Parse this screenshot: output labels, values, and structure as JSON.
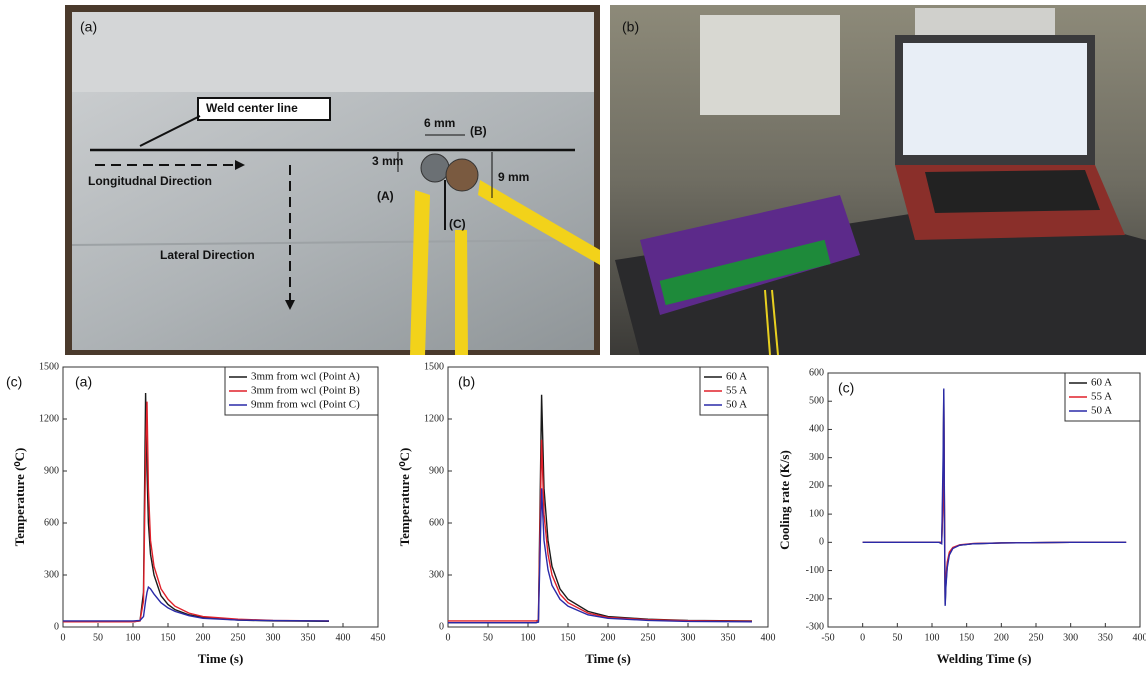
{
  "figure_label": "(c)",
  "photos": [
    {
      "label": "(a)",
      "annotations": [
        "Weld center line",
        "6 mm",
        "(B)",
        "3 mm",
        "(A)",
        "9 mm",
        "(C)",
        "Longitudnal Direction",
        "Lateral Direction"
      ]
    },
    {
      "label": "(b)"
    }
  ],
  "chart_data": [
    {
      "type": "line",
      "panel_label": "(a)",
      "xlabel": "Time (s)",
      "ylabel": "Temperature (⁰C)",
      "xlim": [
        0,
        450
      ],
      "xticks": [
        0,
        50,
        100,
        150,
        200,
        250,
        300,
        350,
        400,
        450
      ],
      "ylim": [
        0,
        1500
      ],
      "yticks": [
        0,
        300,
        600,
        900,
        1200,
        1500
      ],
      "x": [
        0,
        100,
        110,
        115,
        118,
        120,
        122,
        125,
        130,
        140,
        150,
        160,
        180,
        200,
        250,
        300,
        380
      ],
      "series": [
        {
          "name": "3mm from wcl (Point A)",
          "color": "#1a1a1a",
          "values": [
            30,
            30,
            35,
            200,
            1350,
            900,
            600,
            420,
            300,
            180,
            130,
            100,
            70,
            55,
            40,
            35,
            33
          ]
        },
        {
          "name": "3mm from wcl (Point B)",
          "color": "#e0202a",
          "values": [
            30,
            30,
            35,
            150,
            1000,
            1300,
            800,
            500,
            350,
            220,
            160,
            120,
            80,
            60,
            45,
            38,
            35
          ]
        },
        {
          "name": "9mm from wcl (Point C)",
          "color": "#2a2aa8",
          "values": [
            35,
            35,
            38,
            60,
            150,
            200,
            230,
            220,
            190,
            140,
            110,
            90,
            65,
            50,
            40,
            37,
            35
          ]
        }
      ]
    },
    {
      "type": "line",
      "panel_label": "(b)",
      "xlabel": "Time (s)",
      "ylabel": "Temperature (⁰C)",
      "xlim": [
        0,
        400
      ],
      "xticks": [
        0,
        50,
        100,
        150,
        200,
        250,
        300,
        350,
        400
      ],
      "ylim": [
        0,
        1500
      ],
      "yticks": [
        0,
        300,
        600,
        900,
        1200,
        1500
      ],
      "x": [
        0,
        100,
        110,
        113,
        117,
        120,
        125,
        130,
        140,
        150,
        175,
        200,
        250,
        300,
        380
      ],
      "series": [
        {
          "name": "60 A",
          "color": "#1a1a1a",
          "values": [
            25,
            25,
            25,
            30,
            1340,
            800,
            500,
            350,
            220,
            160,
            90,
            60,
            45,
            38,
            35
          ]
        },
        {
          "name": "55 A",
          "color": "#e0202a",
          "values": [
            35,
            35,
            35,
            40,
            1080,
            650,
            420,
            300,
            190,
            140,
            80,
            55,
            42,
            36,
            33
          ]
        },
        {
          "name": "50 A",
          "color": "#2a2aa8",
          "values": [
            25,
            25,
            25,
            28,
            800,
            500,
            330,
            240,
            160,
            120,
            70,
            50,
            38,
            32,
            30
          ]
        }
      ]
    },
    {
      "type": "line",
      "panel_label": "(c)",
      "xlabel": "Welding Time (s)",
      "ylabel": "Cooling rate (K/s)",
      "xlim": [
        -50,
        400
      ],
      "xticks": [
        -50,
        0,
        50,
        100,
        150,
        200,
        250,
        300,
        350,
        400
      ],
      "ylim": [
        -300,
        600
      ],
      "yticks": [
        -300,
        -200,
        -100,
        0,
        100,
        200,
        300,
        400,
        500,
        600
      ],
      "x": [
        0,
        100,
        110,
        114,
        116,
        117,
        118,
        119,
        120,
        122,
        125,
        130,
        140,
        160,
        200,
        300,
        380
      ],
      "series": [
        {
          "name": "60 A",
          "color": "#1a1a1a",
          "values": [
            0,
            0,
            0,
            0,
            200,
            540,
            100,
            -220,
            -150,
            -80,
            -40,
            -20,
            -10,
            -5,
            -2,
            0,
            0
          ]
        },
        {
          "name": "55 A",
          "color": "#e0202a",
          "values": [
            0,
            0,
            0,
            0,
            150,
            500,
            80,
            -200,
            -130,
            -70,
            -35,
            -18,
            -9,
            -4,
            -2,
            0,
            0
          ]
        },
        {
          "name": "50 A",
          "color": "#2a2aa8",
          "values": [
            0,
            0,
            0,
            -5,
            300,
            545,
            50,
            -225,
            -160,
            -90,
            -45,
            -22,
            -10,
            -5,
            -2,
            0,
            0
          ]
        }
      ]
    }
  ]
}
